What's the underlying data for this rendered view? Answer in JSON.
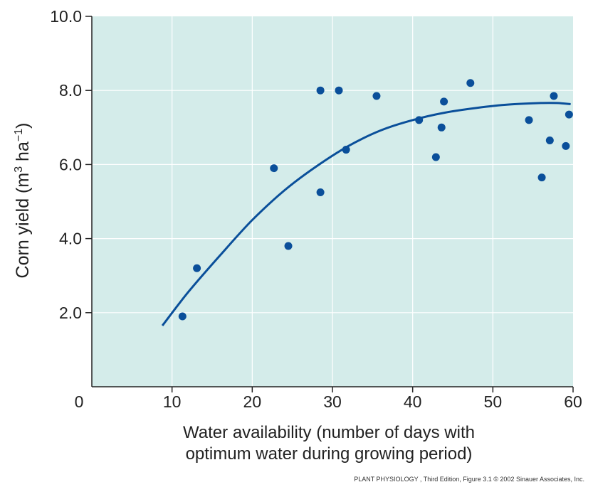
{
  "chart_data": {
    "type": "scatter",
    "xlabel_line1": "Water availability (number of days with",
    "xlabel_line2": "optimum water during growing period)",
    "ylabel": "Corn yield (m",
    "ylabel_sup1": "3",
    "ylabel_mid": " ha",
    "ylabel_sup2": "−1",
    "ylabel_end": ")",
    "xlim": [
      0,
      60
    ],
    "ylim": [
      0,
      10
    ],
    "xticks": [
      "0",
      "10",
      "20",
      "30",
      "40",
      "50",
      "60"
    ],
    "yticks": [
      "2.0",
      "4.0",
      "6.0",
      "8.0",
      "10.0"
    ],
    "grid": true,
    "background_color": "#d4ecea",
    "point_color": "#0a4f9a",
    "curve_color": "#0a4f9a",
    "points": [
      {
        "x": 11.3,
        "y": 1.9
      },
      {
        "x": 13.1,
        "y": 3.2
      },
      {
        "x": 22.7,
        "y": 5.9
      },
      {
        "x": 24.5,
        "y": 3.8
      },
      {
        "x": 28.5,
        "y": 8.0
      },
      {
        "x": 28.5,
        "y": 5.25
      },
      {
        "x": 30.8,
        "y": 8.0
      },
      {
        "x": 31.7,
        "y": 6.4
      },
      {
        "x": 35.5,
        "y": 7.85
      },
      {
        "x": 40.8,
        "y": 7.2
      },
      {
        "x": 42.9,
        "y": 6.2
      },
      {
        "x": 43.6,
        "y": 7.0
      },
      {
        "x": 43.9,
        "y": 7.7
      },
      {
        "x": 47.2,
        "y": 8.2
      },
      {
        "x": 54.5,
        "y": 7.2
      },
      {
        "x": 56.1,
        "y": 5.65
      },
      {
        "x": 57.1,
        "y": 6.65
      },
      {
        "x": 57.6,
        "y": 7.85
      },
      {
        "x": 59.1,
        "y": 6.5
      },
      {
        "x": 59.5,
        "y": 7.35
      }
    ],
    "fit_curve": [
      {
        "x": 8.8,
        "y": 1.65
      },
      {
        "x": 12,
        "y": 2.55
      },
      {
        "x": 16,
        "y": 3.55
      },
      {
        "x": 20,
        "y": 4.5
      },
      {
        "x": 24,
        "y": 5.3
      },
      {
        "x": 28,
        "y": 5.95
      },
      {
        "x": 32,
        "y": 6.5
      },
      {
        "x": 36,
        "y": 6.92
      },
      {
        "x": 40,
        "y": 7.2
      },
      {
        "x": 44,
        "y": 7.4
      },
      {
        "x": 48,
        "y": 7.53
      },
      {
        "x": 52,
        "y": 7.62
      },
      {
        "x": 56,
        "y": 7.66
      },
      {
        "x": 58,
        "y": 7.66
      },
      {
        "x": 59.7,
        "y": 7.63
      }
    ]
  },
  "credit": "PLANT PHYSIOLOGY , Third Edition, Figure 3.1  © 2002 Sinauer Associates, Inc."
}
